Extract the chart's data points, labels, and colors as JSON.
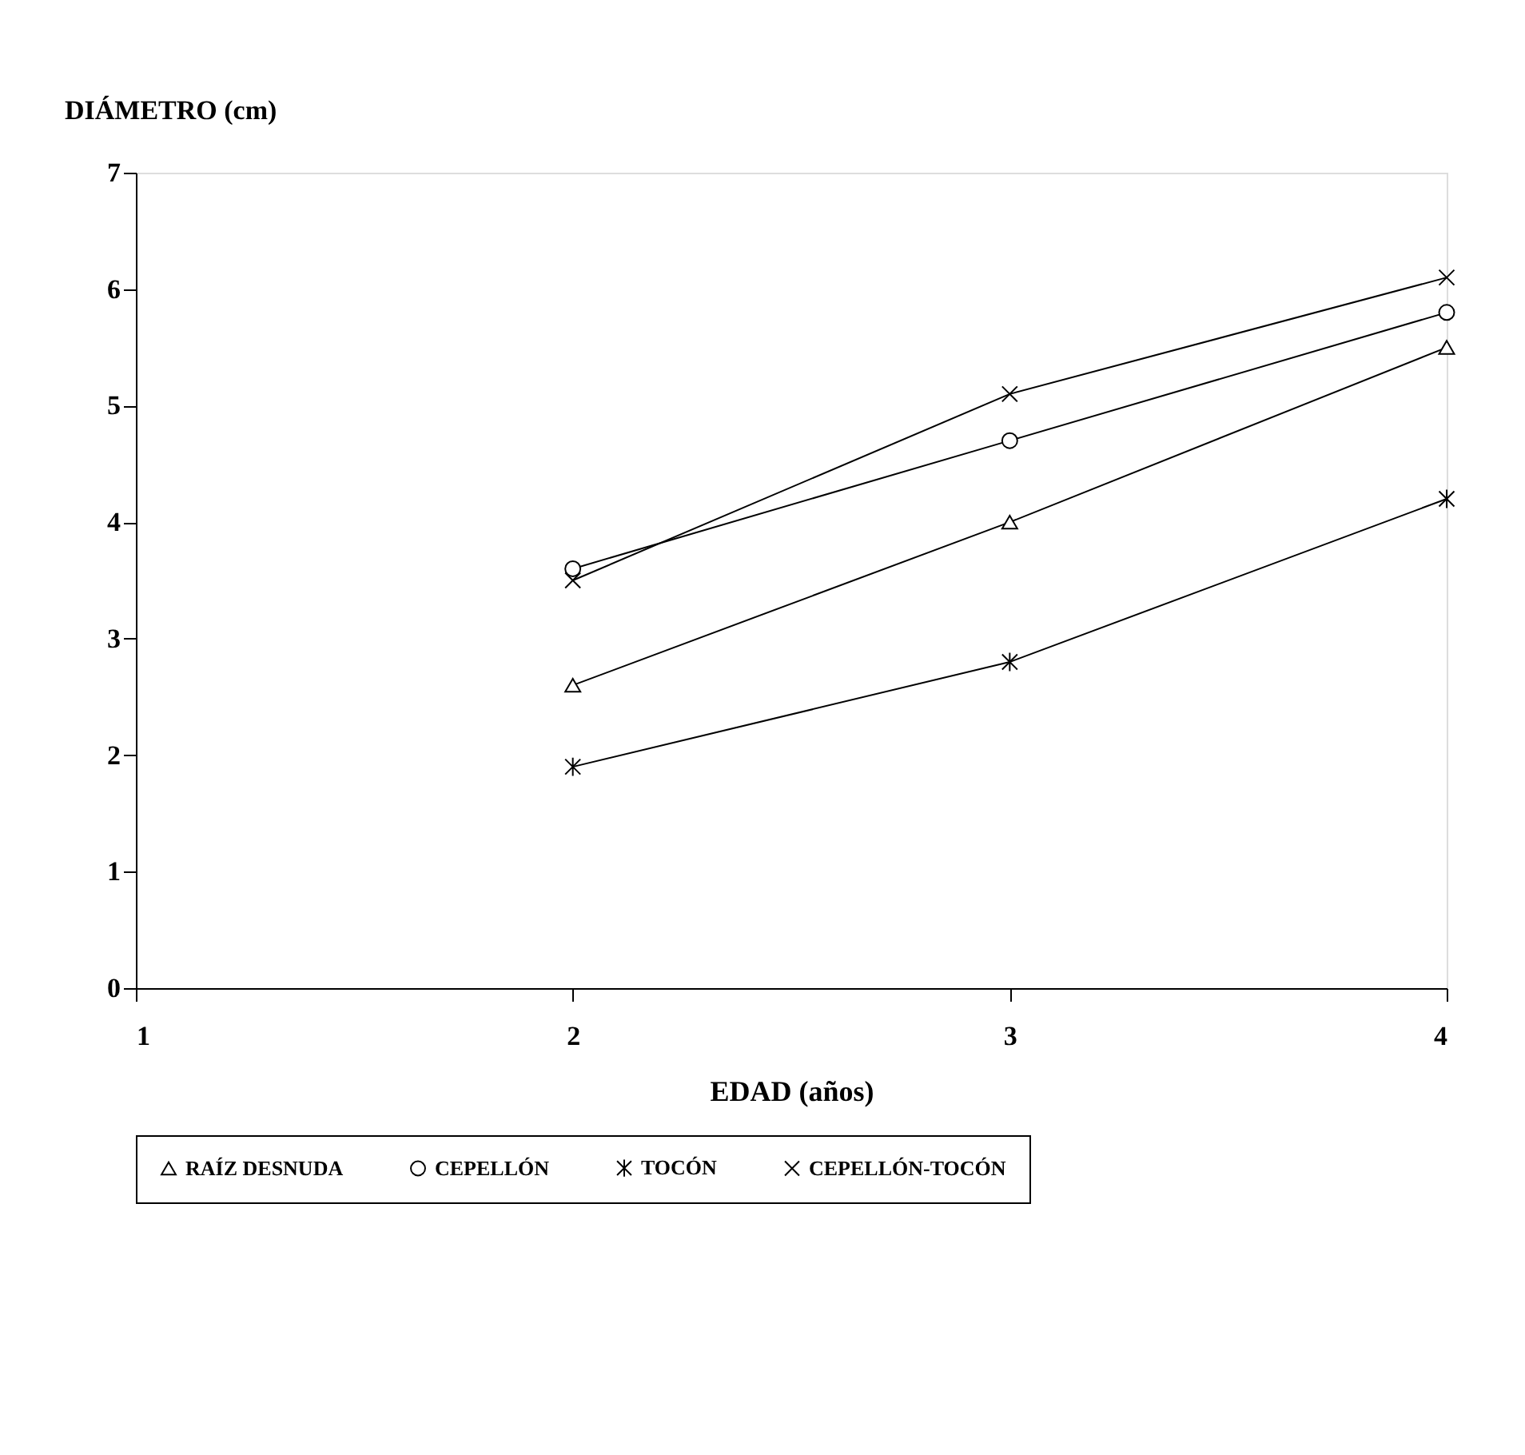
{
  "chart_data": {
    "type": "line",
    "xlabel": "EDAD (años)",
    "ylabel": "DIÁMETRO (cm)",
    "x": [
      2,
      3,
      4
    ],
    "xlim": [
      1,
      4
    ],
    "xticks": [
      1,
      2,
      3,
      4
    ],
    "ylim": [
      0,
      7
    ],
    "yticks": [
      0,
      1,
      2,
      3,
      4,
      5,
      6,
      7
    ],
    "grid": false,
    "legend": "bottom",
    "line_style": "solid",
    "series": [
      {
        "name": "RAÍZ DESNUDA",
        "color": "#000000",
        "marker": "triangle",
        "values": [
          2.6,
          4.0,
          5.5
        ]
      },
      {
        "name": "CEPELLÓN",
        "color": "#000000",
        "marker": "circle",
        "values": [
          3.6,
          4.7,
          5.8
        ]
      },
      {
        "name": "TOCÓN",
        "color": "#000000",
        "marker": "cross",
        "values": [
          1.9,
          2.8,
          4.2
        ]
      },
      {
        "name": "CEPELLÓN-TOCÓN",
        "color": "#000000",
        "marker": "cross",
        "values": [
          3.5,
          5.1,
          6.1
        ]
      }
    ]
  }
}
